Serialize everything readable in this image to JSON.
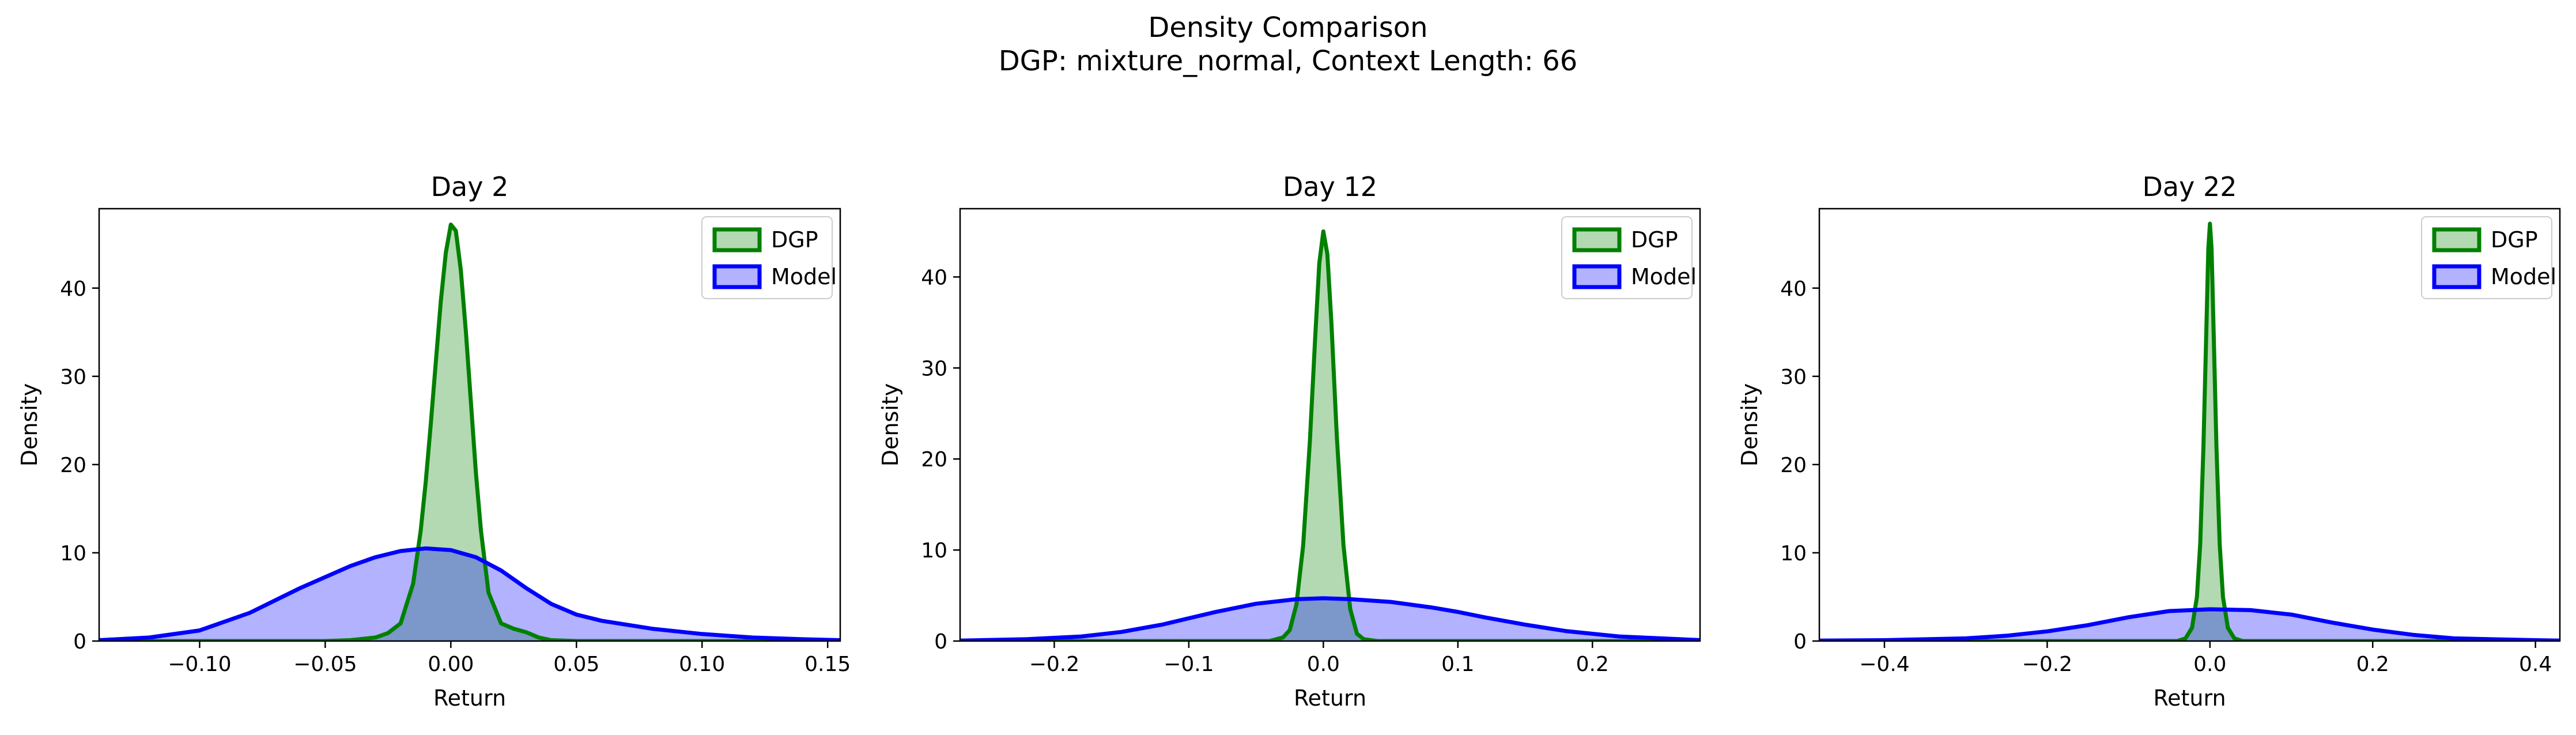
{
  "figure": {
    "title_line1": "Density Comparison",
    "title_line2": "DGP: mixture_normal, Context Length: 66"
  },
  "colors": {
    "dgp_line": "#008000",
    "dgp_fill": "#008000",
    "model_line": "#0000ff",
    "model_fill": "#0000ff"
  },
  "chart_data": [
    {
      "type": "area",
      "title": "Day 2",
      "xlabel": "Return",
      "ylabel": "Density",
      "xlim": [
        -0.14,
        0.155
      ],
      "ylim": [
        0,
        49
      ],
      "xticks": [
        -0.1,
        -0.05,
        0.0,
        0.05,
        0.1,
        0.15
      ],
      "xtick_labels": [
        "−0.10",
        "−0.05",
        "0.00",
        "0.05",
        "0.10",
        "0.15"
      ],
      "yticks": [
        0,
        10,
        20,
        30,
        40
      ],
      "ytick_labels": [
        "0",
        "10",
        "20",
        "30",
        "40"
      ],
      "legend": "top-right",
      "series": [
        {
          "name": "DGP",
          "x": [
            -0.14,
            -0.05,
            -0.04,
            -0.03,
            -0.025,
            -0.02,
            -0.015,
            -0.012,
            -0.01,
            -0.008,
            -0.006,
            -0.004,
            -0.002,
            0.0,
            0.002,
            0.004,
            0.006,
            0.008,
            0.01,
            0.012,
            0.015,
            0.02,
            0.025,
            0.03,
            0.035,
            0.04,
            0.05,
            0.155
          ],
          "y": [
            0.0,
            0.0,
            0.1,
            0.4,
            0.9,
            2.0,
            6.5,
            12.5,
            18.0,
            24.5,
            31.5,
            38.5,
            44.0,
            47.2,
            46.5,
            42.0,
            35.0,
            27.0,
            19.0,
            12.5,
            5.5,
            2.0,
            1.4,
            1.0,
            0.4,
            0.1,
            0.0,
            0.0
          ]
        },
        {
          "name": "Model",
          "x": [
            -0.14,
            -0.12,
            -0.1,
            -0.08,
            -0.06,
            -0.04,
            -0.03,
            -0.02,
            -0.01,
            0.0,
            0.01,
            0.02,
            0.03,
            0.04,
            0.05,
            0.06,
            0.08,
            0.1,
            0.12,
            0.14,
            0.155
          ],
          "y": [
            0.1,
            0.4,
            1.2,
            3.2,
            6.0,
            8.5,
            9.5,
            10.2,
            10.5,
            10.3,
            9.5,
            8.0,
            6.0,
            4.2,
            3.0,
            2.3,
            1.4,
            0.8,
            0.4,
            0.2,
            0.1
          ]
        }
      ]
    },
    {
      "type": "area",
      "title": "Day 12",
      "xlabel": "Return",
      "ylabel": "Density",
      "xlim": [
        -0.27,
        0.28
      ],
      "ylim": [
        0,
        47.5
      ],
      "xticks": [
        -0.2,
        -0.1,
        0.0,
        0.1,
        0.2
      ],
      "xtick_labels": [
        "−0.2",
        "−0.1",
        "0.0",
        "0.1",
        "0.2"
      ],
      "yticks": [
        0,
        10,
        20,
        30,
        40
      ],
      "ytick_labels": [
        "0",
        "10",
        "20",
        "30",
        "40"
      ],
      "legend": "top-right",
      "series": [
        {
          "name": "DGP",
          "x": [
            -0.27,
            -0.04,
            -0.03,
            -0.025,
            -0.02,
            -0.015,
            -0.01,
            -0.006,
            -0.003,
            0.0,
            0.003,
            0.006,
            0.01,
            0.015,
            0.02,
            0.025,
            0.03,
            0.04,
            0.28
          ],
          "y": [
            0.0,
            0.0,
            0.4,
            1.2,
            4.0,
            10.5,
            22.0,
            33.5,
            41.5,
            45.0,
            42.5,
            35.0,
            22.5,
            10.5,
            3.5,
            0.8,
            0.2,
            0.0,
            0.0
          ]
        },
        {
          "name": "Model",
          "x": [
            -0.27,
            -0.22,
            -0.18,
            -0.15,
            -0.12,
            -0.1,
            -0.08,
            -0.05,
            -0.02,
            0.0,
            0.02,
            0.05,
            0.08,
            0.1,
            0.12,
            0.15,
            0.18,
            0.22,
            0.28
          ],
          "y": [
            0.05,
            0.2,
            0.5,
            1.0,
            1.8,
            2.5,
            3.2,
            4.1,
            4.6,
            4.7,
            4.6,
            4.3,
            3.7,
            3.2,
            2.6,
            1.8,
            1.1,
            0.5,
            0.1
          ]
        }
      ]
    },
    {
      "type": "area",
      "title": "Day 22",
      "xlabel": "Return",
      "ylabel": "Density",
      "xlim": [
        -0.48,
        0.43
      ],
      "ylim": [
        0,
        49
      ],
      "xticks": [
        -0.4,
        -0.2,
        0.0,
        0.2,
        0.4
      ],
      "xtick_labels": [
        "−0.4",
        "−0.2",
        "0.0",
        "0.2",
        "0.4"
      ],
      "yticks": [
        0,
        10,
        20,
        30,
        40
      ],
      "ytick_labels": [
        "0",
        "10",
        "20",
        "30",
        "40"
      ],
      "legend": "top-right",
      "series": [
        {
          "name": "DGP",
          "x": [
            -0.48,
            -0.04,
            -0.03,
            -0.022,
            -0.016,
            -0.012,
            -0.008,
            -0.004,
            -0.002,
            0.0,
            0.002,
            0.004,
            0.008,
            0.012,
            0.016,
            0.022,
            0.03,
            0.04,
            0.43
          ],
          "y": [
            0.0,
            0.0,
            0.3,
            1.5,
            5.0,
            11.0,
            22.0,
            37.0,
            44.5,
            47.3,
            44.5,
            37.0,
            22.0,
            11.0,
            5.0,
            1.5,
            0.3,
            0.0,
            0.0
          ]
        },
        {
          "name": "Model",
          "x": [
            -0.48,
            -0.4,
            -0.3,
            -0.25,
            -0.2,
            -0.15,
            -0.1,
            -0.05,
            0.0,
            0.05,
            0.1,
            0.15,
            0.2,
            0.25,
            0.3,
            0.4,
            0.43
          ],
          "y": [
            0.05,
            0.1,
            0.3,
            0.6,
            1.1,
            1.8,
            2.7,
            3.4,
            3.6,
            3.5,
            3.0,
            2.1,
            1.3,
            0.7,
            0.3,
            0.1,
            0.05
          ]
        }
      ]
    }
  ]
}
